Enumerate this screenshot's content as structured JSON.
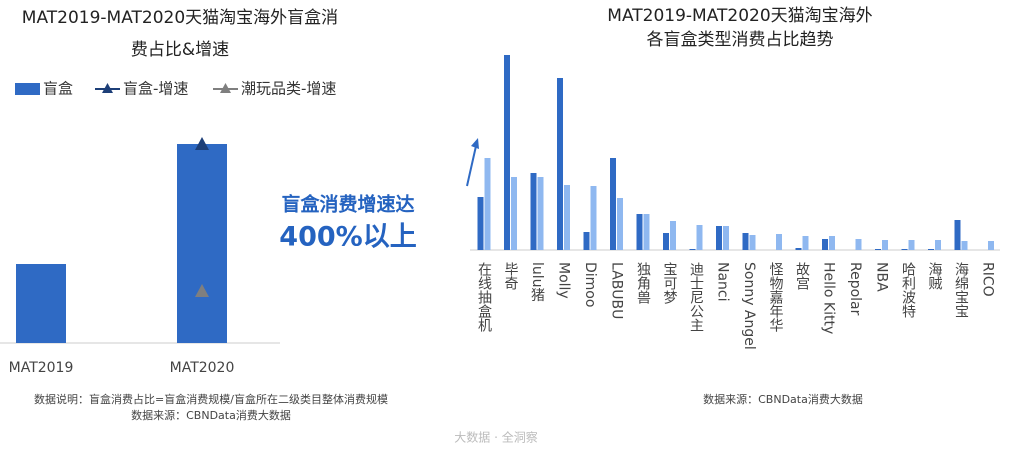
{
  "chart_data": [
    {
      "type": "bar",
      "title": [
        "MAT2019-MAT2020天猫淘宝海外盲盒消",
        "费占比&增速"
      ],
      "categories": [
        "MAT2019",
        "MAT2020"
      ],
      "series": [
        {
          "name": "盲盒",
          "type": "bar",
          "color": "#2f6ac4",
          "values": [
            79,
            199
          ]
        },
        {
          "name": "盲盒-增速",
          "type": "line",
          "color": "#1d3f78",
          "values": [
            null,
            199
          ]
        },
        {
          "name": "潮玩品类-增速",
          "type": "line",
          "color": "#7f7f7f",
          "values": [
            null,
            52
          ]
        }
      ],
      "ylim": [
        0,
        220
      ],
      "annotation": [
        "盲盒消费增速达",
        "400%以上"
      ],
      "notes": [
        "数据说明：盲盒消费占比=盲盒消费规模/盲盒所在二级类目整体消费规模",
        "数据来源：CBNData消费大数据"
      ]
    },
    {
      "type": "bar",
      "title": [
        "MAT2019-MAT2020天猫淘宝海外",
        "各盲盒类型消费占比趋势"
      ],
      "categories": [
        "在线抽盒机",
        "毕奇",
        "lulu猪",
        "Molly",
        "Dimoo",
        "LABUBU",
        "独角兽",
        "宝可梦",
        "迪士尼公主",
        "Nanci",
        "Sonny Angel",
        "怪物嘉年华",
        "故宫",
        "Hello Kitty",
        "Repolar",
        "NBA",
        "哈利波特",
        "海贼",
        "海绵宝宝",
        "RICO"
      ],
      "series": [
        {
          "color": "#2f6ac4",
          "values": [
            53,
            195,
            77,
            172,
            18,
            92,
            36,
            17,
            1,
            24,
            17,
            0,
            2,
            11,
            0,
            1,
            1,
            1,
            30,
            0
          ]
        },
        {
          "color": "#8fb8f0",
          "values": [
            92,
            73,
            73,
            65,
            64,
            52,
            36,
            29,
            25,
            24,
            15,
            16,
            14,
            14,
            11,
            10,
            10,
            10,
            9,
            9
          ]
        }
      ],
      "ylim": [
        0,
        200
      ],
      "notes": [
        "数据来源：CBNData消费大数据"
      ]
    }
  ],
  "footer": "大数据 · 全洞察"
}
